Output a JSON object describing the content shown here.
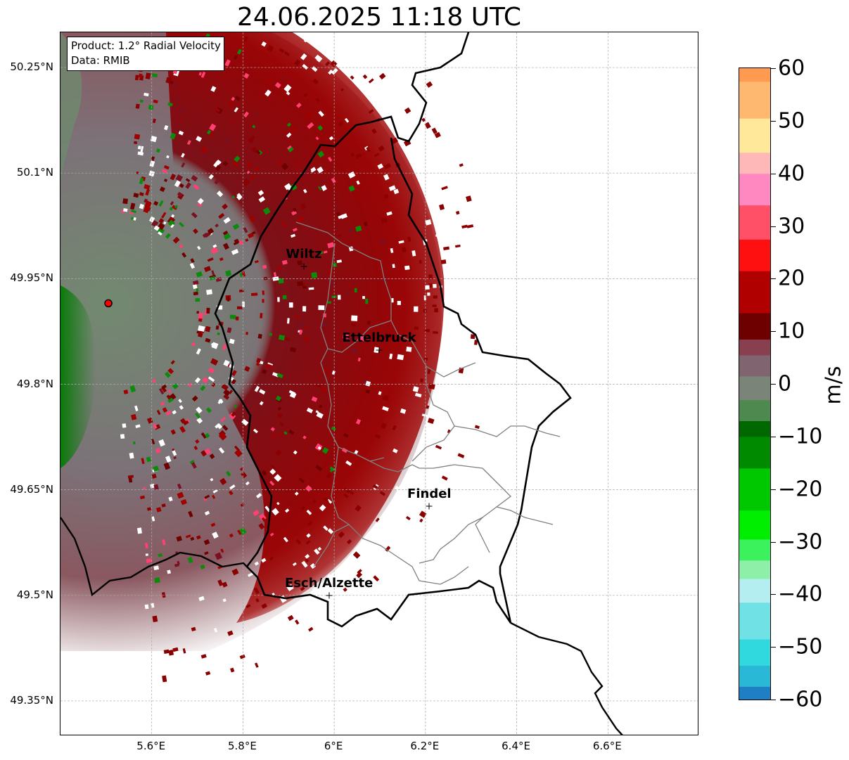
{
  "title": "24.06.2025 11:18 UTC",
  "info_box": {
    "product": "Product: 1.2° Radial Velocity",
    "data": "Data: RMIB"
  },
  "map": {
    "lon_range": [
      5.4,
      6.8
    ],
    "lat_range": [
      49.3,
      50.3
    ],
    "lat_ticks": [
      {
        "value": 50.25,
        "label": "50.25°N"
      },
      {
        "value": 50.1,
        "label": "50.1°N"
      },
      {
        "value": 49.95,
        "label": "49.95°N"
      },
      {
        "value": 49.8,
        "label": "49.8°N"
      },
      {
        "value": 49.65,
        "label": "49.65°N"
      },
      {
        "value": 49.5,
        "label": "49.5°N"
      },
      {
        "value": 49.35,
        "label": "49.35°N"
      }
    ],
    "lon_ticks": [
      {
        "value": 5.6,
        "label": "5.6°E"
      },
      {
        "value": 5.8,
        "label": "5.8°E"
      },
      {
        "value": 6.0,
        "label": "6°E"
      },
      {
        "value": 6.2,
        "label": "6.2°E"
      },
      {
        "value": 6.4,
        "label": "6.4°E"
      },
      {
        "value": 6.6,
        "label": "6.6°E"
      }
    ],
    "grid": true,
    "radar_site": {
      "lon": 5.505,
      "lat": 49.915,
      "color": "#ff0000"
    },
    "cities": [
      {
        "name": "Wiltz",
        "lon": 5.935,
        "lat": 49.966
      },
      {
        "name": "Ettelbruck",
        "lon": 6.1,
        "lat": 49.847
      },
      {
        "name": "Findel",
        "lon": 6.21,
        "lat": 49.626
      },
      {
        "name": "Esch/Alzette",
        "lon": 5.99,
        "lat": 49.499
      }
    ],
    "border_color": "#000000",
    "canton_color": "#808080"
  },
  "colorbar": {
    "unit": "m/s",
    "min": -60,
    "max": 60,
    "ticks": [
      {
        "value": 60,
        "label": "60"
      },
      {
        "value": 50,
        "label": "50"
      },
      {
        "value": 40,
        "label": "40"
      },
      {
        "value": 30,
        "label": "30"
      },
      {
        "value": 20,
        "label": "20"
      },
      {
        "value": 10,
        "label": "10"
      },
      {
        "value": 0,
        "label": "0"
      },
      {
        "value": -10,
        "label": "−10"
      },
      {
        "value": -20,
        "label": "−20"
      },
      {
        "value": -30,
        "label": "−30"
      },
      {
        "value": -40,
        "label": "−40"
      },
      {
        "value": -50,
        "label": "−50"
      },
      {
        "value": -60,
        "label": "−60"
      }
    ],
    "stops": [
      {
        "value": -60,
        "color": "#1f7fc4"
      },
      {
        "value": -55,
        "color": "#29b8d6"
      },
      {
        "value": -52,
        "color": "#2fd9de"
      },
      {
        "value": -45,
        "color": "#70e2e6"
      },
      {
        "value": -38,
        "color": "#b4eef0"
      },
      {
        "value": -36,
        "color": "#8ef0a8"
      },
      {
        "value": -31,
        "color": "#3cf25c"
      },
      {
        "value": -28,
        "color": "#00ee00"
      },
      {
        "value": -20,
        "color": "#00c800"
      },
      {
        "value": -12,
        "color": "#008a00"
      },
      {
        "value": -8,
        "color": "#006800"
      },
      {
        "value": -6,
        "color": "#4e8a50"
      },
      {
        "value": 0,
        "color": "#7a8478"
      },
      {
        "value": 3,
        "color": "#806470"
      },
      {
        "value": 8,
        "color": "#884050"
      },
      {
        "value": 9,
        "color": "#6e0000"
      },
      {
        "value": 18,
        "color": "#b00000"
      },
      {
        "value": 25,
        "color": "#ff1010"
      },
      {
        "value": 30,
        "color": "#ff5068"
      },
      {
        "value": 38,
        "color": "#ff88c0"
      },
      {
        "value": 42,
        "color": "#ffb8b8"
      },
      {
        "value": 46,
        "color": "#ffe89a"
      },
      {
        "value": 55,
        "color": "#ffb870"
      },
      {
        "value": 60,
        "color": "#ff9a50"
      }
    ]
  }
}
